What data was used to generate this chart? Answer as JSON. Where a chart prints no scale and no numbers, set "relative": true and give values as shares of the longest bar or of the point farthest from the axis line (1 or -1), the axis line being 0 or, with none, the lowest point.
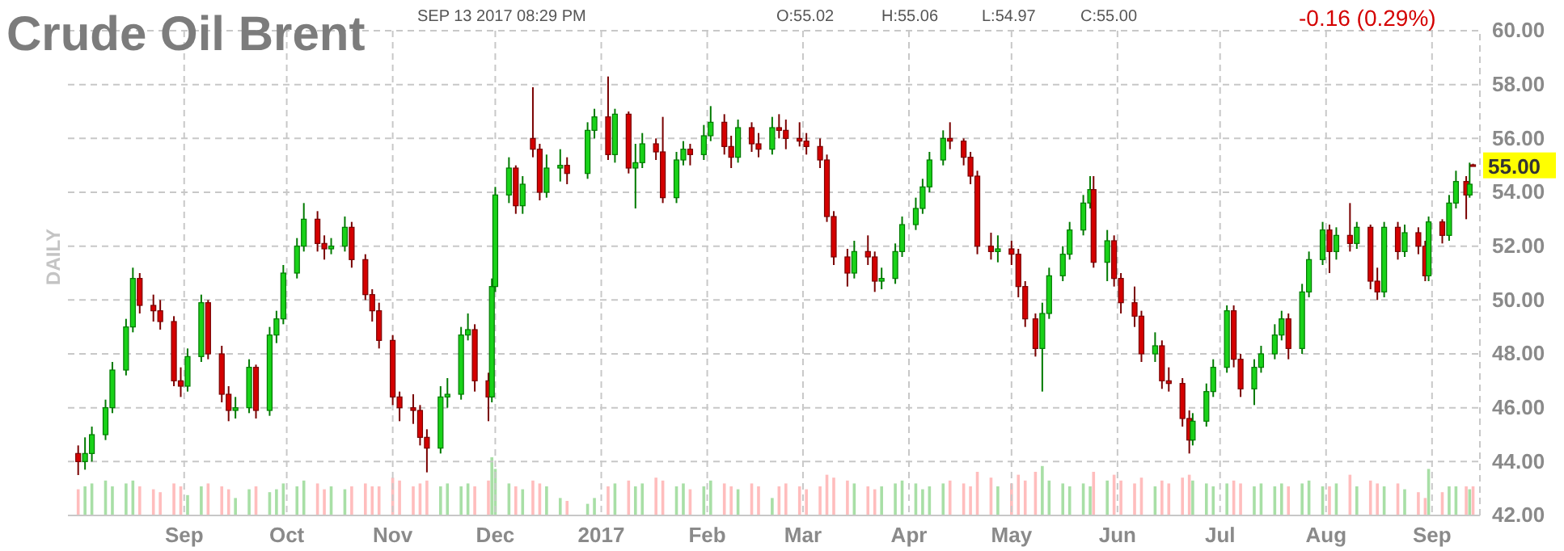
{
  "chart_data": [
    {
      "type": "candlestick",
      "title": "Crude Oil Brent",
      "subtitle": "SEP 13 2017 08:29 PM",
      "ylabel": "DAILY",
      "annotations": [
        "O:55.02",
        "H:55.06",
        "L:54.97",
        "C:55.00",
        "-0.16 (0.29%)",
        "55.00"
      ],
      "x": [
        "2016-08-01",
        "2016-08-03",
        "2016-08-05",
        "2016-08-09",
        "2016-08-11",
        "2016-08-15",
        "2016-08-17",
        "2016-08-19",
        "2016-08-23",
        "2016-08-25",
        "2016-08-29",
        "2016-08-31",
        "2016-09-02",
        "2016-09-06",
        "2016-09-08",
        "2016-09-12",
        "2016-09-14",
        "2016-09-16",
        "2016-09-20",
        "2016-09-22",
        "2016-09-26",
        "2016-09-28",
        "2016-09-30",
        "2016-10-04",
        "2016-10-06",
        "2016-10-10",
        "2016-10-12",
        "2016-10-14",
        "2016-10-18",
        "2016-10-20",
        "2016-10-24",
        "2016-10-26",
        "2016-10-28",
        "2016-11-01",
        "2016-11-03",
        "2016-11-07",
        "2016-11-09",
        "2016-11-11",
        "2016-11-15",
        "2016-11-17",
        "2016-11-21",
        "2016-11-23",
        "2016-11-25",
        "2016-11-29",
        "2016-11-30",
        "2016-12-01",
        "2016-12-05",
        "2016-12-07",
        "2016-12-09",
        "2016-12-12",
        "2016-12-14",
        "2016-12-16",
        "2016-12-20",
        "2016-12-22",
        "2016-12-28",
        "2016-12-30",
        "2017-01-03",
        "2017-01-05",
        "2017-01-09",
        "2017-01-11",
        "2017-01-13",
        "2017-01-17",
        "2017-01-19",
        "2017-01-23",
        "2017-01-25",
        "2017-01-27",
        "2017-01-31",
        "2017-02-02",
        "2017-02-06",
        "2017-02-08",
        "2017-02-10",
        "2017-02-14",
        "2017-02-16",
        "2017-02-20",
        "2017-02-22",
        "2017-02-24",
        "2017-02-28",
        "2017-03-02",
        "2017-03-06",
        "2017-03-08",
        "2017-03-10",
        "2017-03-14",
        "2017-03-16",
        "2017-03-20",
        "2017-03-22",
        "2017-03-24",
        "2017-03-28",
        "2017-03-30",
        "2017-04-03",
        "2017-04-05",
        "2017-04-07",
        "2017-04-11",
        "2017-04-13",
        "2017-04-17",
        "2017-04-19",
        "2017-04-21",
        "2017-04-25",
        "2017-04-27",
        "2017-05-01",
        "2017-05-03",
        "2017-05-05",
        "2017-05-08",
        "2017-05-10",
        "2017-05-12",
        "2017-05-16",
        "2017-05-18",
        "2017-05-22",
        "2017-05-24",
        "2017-05-25",
        "2017-05-29",
        "2017-05-31",
        "2017-06-02",
        "2017-06-06",
        "2017-06-08",
        "2017-06-12",
        "2017-06-14",
        "2017-06-16",
        "2017-06-20",
        "2017-06-22",
        "2017-06-23",
        "2017-06-27",
        "2017-06-29",
        "2017-07-03",
        "2017-07-05",
        "2017-07-07",
        "2017-07-11",
        "2017-07-13",
        "2017-07-17",
        "2017-07-19",
        "2017-07-21",
        "2017-07-25",
        "2017-07-27",
        "2017-07-31",
        "2017-08-02",
        "2017-08-04",
        "2017-08-08",
        "2017-08-10",
        "2017-08-14",
        "2017-08-16",
        "2017-08-18",
        "2017-08-22",
        "2017-08-24",
        "2017-08-28",
        "2017-08-30",
        "2017-08-31",
        "2017-09-04",
        "2017-09-06",
        "2017-09-08",
        "2017-09-11",
        "2017-09-12",
        "2017-09-13"
      ],
      "ohlc": [
        [
          44.3,
          44.6,
          43.5,
          44.0
        ],
        [
          44.0,
          44.9,
          43.7,
          44.3
        ],
        [
          44.3,
          45.3,
          44.0,
          45.0
        ],
        [
          45.0,
          46.3,
          44.8,
          46.0
        ],
        [
          46.0,
          47.7,
          45.8,
          47.4
        ],
        [
          47.4,
          49.3,
          47.2,
          49.0
        ],
        [
          49.0,
          51.2,
          48.8,
          50.8
        ],
        [
          50.8,
          51.0,
          49.5,
          49.8
        ],
        [
          49.8,
          50.2,
          49.2,
          49.6
        ],
        [
          49.6,
          50.0,
          48.9,
          49.2
        ],
        [
          49.2,
          49.4,
          46.8,
          47.0
        ],
        [
          47.0,
          47.5,
          46.4,
          46.8
        ],
        [
          46.8,
          48.2,
          46.6,
          47.9
        ],
        [
          47.9,
          50.2,
          47.7,
          49.9
        ],
        [
          49.9,
          50.0,
          47.8,
          48.0
        ],
        [
          48.0,
          48.3,
          46.2,
          46.5
        ],
        [
          46.5,
          46.8,
          45.5,
          45.9
        ],
        [
          45.9,
          46.4,
          45.6,
          46.0
        ],
        [
          46.0,
          47.8,
          45.8,
          47.5
        ],
        [
          47.5,
          47.6,
          45.6,
          45.9
        ],
        [
          45.9,
          49.0,
          45.7,
          48.7
        ],
        [
          48.7,
          49.6,
          48.4,
          49.3
        ],
        [
          49.3,
          51.3,
          49.1,
          51.0
        ],
        [
          51.0,
          52.3,
          50.8,
          52.0
        ],
        [
          52.0,
          53.6,
          51.8,
          53.0
        ],
        [
          53.0,
          53.3,
          51.8,
          52.1
        ],
        [
          52.1,
          52.4,
          51.5,
          51.9
        ],
        [
          51.9,
          52.3,
          51.7,
          52.0
        ],
        [
          52.0,
          53.1,
          51.8,
          52.7
        ],
        [
          52.7,
          52.9,
          51.2,
          51.5
        ],
        [
          51.5,
          51.7,
          50.0,
          50.2
        ],
        [
          50.2,
          50.4,
          49.2,
          49.6
        ],
        [
          49.6,
          49.9,
          48.2,
          48.5
        ],
        [
          48.5,
          48.7,
          46.1,
          46.4
        ],
        [
          46.4,
          46.6,
          45.5,
          46.0
        ],
        [
          46.0,
          46.5,
          45.4,
          45.9
        ],
        [
          45.9,
          46.1,
          44.6,
          44.9
        ],
        [
          44.9,
          45.2,
          43.6,
          44.5
        ],
        [
          44.5,
          46.8,
          44.3,
          46.4
        ],
        [
          46.4,
          47.1,
          46.0,
          46.5
        ],
        [
          46.5,
          49.0,
          46.3,
          48.7
        ],
        [
          48.7,
          49.5,
          48.5,
          48.9
        ],
        [
          48.9,
          49.1,
          46.6,
          47.0
        ],
        [
          47.0,
          47.3,
          45.5,
          46.4
        ],
        [
          46.4,
          50.8,
          46.2,
          50.5
        ],
        [
          50.5,
          54.2,
          50.3,
          53.9
        ],
        [
          53.9,
          55.3,
          53.6,
          54.9
        ],
        [
          54.9,
          55.0,
          53.2,
          53.5
        ],
        [
          53.5,
          54.6,
          53.2,
          54.3
        ],
        [
          56.0,
          57.9,
          55.3,
          55.6
        ],
        [
          55.6,
          55.8,
          53.7,
          54.0
        ],
        [
          54.0,
          55.4,
          53.8,
          54.9
        ],
        [
          54.9,
          55.6,
          54.4,
          55.0
        ],
        [
          55.0,
          55.3,
          54.3,
          54.7
        ],
        [
          54.7,
          56.6,
          54.5,
          56.3
        ],
        [
          56.3,
          57.1,
          56.0,
          56.8
        ],
        [
          56.8,
          58.3,
          55.2,
          55.4
        ],
        [
          55.4,
          57.1,
          55.1,
          56.9
        ],
        [
          56.9,
          57.0,
          54.7,
          54.9
        ],
        [
          54.9,
          55.8,
          53.4,
          55.1
        ],
        [
          55.1,
          56.2,
          54.9,
          55.8
        ],
        [
          55.8,
          56.0,
          55.2,
          55.5
        ],
        [
          55.5,
          56.8,
          53.6,
          53.8
        ],
        [
          53.8,
          55.5,
          53.6,
          55.2
        ],
        [
          55.2,
          55.9,
          55.0,
          55.6
        ],
        [
          55.6,
          55.8,
          55.0,
          55.4
        ],
        [
          55.4,
          56.5,
          55.2,
          56.1
        ],
        [
          56.1,
          57.2,
          55.9,
          56.6
        ],
        [
          56.6,
          56.9,
          55.4,
          55.7
        ],
        [
          55.7,
          56.1,
          54.9,
          55.3
        ],
        [
          55.3,
          56.7,
          55.1,
          56.4
        ],
        [
          56.4,
          56.6,
          55.5,
          55.8
        ],
        [
          55.8,
          56.2,
          55.3,
          55.6
        ],
        [
          55.6,
          56.8,
          55.4,
          56.4
        ],
        [
          56.4,
          56.9,
          56.0,
          56.3
        ],
        [
          56.3,
          56.7,
          55.6,
          56.0
        ],
        [
          56.0,
          56.6,
          55.7,
          55.9
        ],
        [
          55.9,
          56.2,
          55.4,
          55.7
        ],
        [
          55.7,
          56.0,
          54.9,
          55.2
        ],
        [
          55.2,
          55.4,
          52.9,
          53.1
        ],
        [
          53.1,
          53.3,
          51.3,
          51.6
        ],
        [
          51.6,
          51.9,
          50.5,
          51.0
        ],
        [
          51.0,
          52.2,
          50.8,
          51.8
        ],
        [
          51.8,
          52.4,
          51.3,
          51.6
        ],
        [
          51.6,
          51.8,
          50.3,
          50.7
        ],
        [
          50.7,
          51.2,
          50.4,
          50.8
        ],
        [
          50.8,
          52.1,
          50.6,
          51.8
        ],
        [
          51.8,
          53.1,
          51.6,
          52.8
        ],
        [
          52.8,
          53.8,
          52.6,
          53.4
        ],
        [
          53.4,
          54.5,
          53.2,
          54.2
        ],
        [
          54.2,
          55.5,
          54.0,
          55.2
        ],
        [
          55.2,
          56.3,
          55.0,
          56.0
        ],
        [
          56.0,
          56.6,
          55.6,
          55.9
        ],
        [
          55.9,
          56.0,
          55.0,
          55.3
        ],
        [
          55.3,
          55.5,
          54.3,
          54.6
        ],
        [
          54.6,
          54.8,
          51.7,
          52.0
        ],
        [
          52.0,
          52.5,
          51.5,
          51.8
        ],
        [
          51.8,
          52.4,
          51.4,
          51.9
        ],
        [
          51.9,
          52.2,
          51.3,
          51.7
        ],
        [
          51.7,
          51.9,
          50.1,
          50.5
        ],
        [
          50.5,
          50.7,
          49.0,
          49.3
        ],
        [
          49.3,
          49.5,
          47.9,
          48.2
        ],
        [
          48.2,
          49.9,
          46.6,
          49.5
        ],
        [
          49.5,
          51.2,
          49.3,
          50.9
        ],
        [
          50.9,
          52.0,
          50.7,
          51.7
        ],
        [
          51.7,
          52.9,
          51.5,
          52.6
        ],
        [
          52.6,
          53.9,
          52.4,
          53.6
        ],
        [
          53.6,
          54.6,
          53.4,
          54.1
        ],
        [
          54.1,
          54.6,
          51.2,
          51.4
        ],
        [
          51.4,
          52.6,
          50.7,
          52.2
        ],
        [
          52.2,
          52.4,
          50.5,
          50.8
        ],
        [
          50.8,
          51.0,
          49.5,
          49.9
        ],
        [
          49.9,
          50.5,
          49.0,
          49.4
        ],
        [
          49.4,
          49.6,
          47.7,
          48.0
        ],
        [
          48.0,
          48.8,
          47.7,
          48.3
        ],
        [
          48.3,
          48.5,
          46.7,
          47.0
        ],
        [
          47.0,
          47.5,
          46.6,
          46.9
        ],
        [
          46.9,
          47.1,
          45.3,
          45.6
        ],
        [
          45.6,
          45.9,
          44.3,
          44.8
        ],
        [
          44.8,
          45.8,
          44.6,
          45.5
        ],
        [
          45.5,
          46.9,
          45.3,
          46.6
        ],
        [
          46.6,
          47.8,
          46.4,
          47.5
        ],
        [
          47.5,
          49.8,
          47.3,
          49.6
        ],
        [
          49.6,
          49.8,
          47.5,
          47.8
        ],
        [
          47.8,
          48.0,
          46.4,
          46.7
        ],
        [
          46.7,
          47.8,
          46.1,
          47.5
        ],
        [
          47.5,
          48.3,
          47.3,
          48.0
        ],
        [
          48.0,
          49.1,
          47.8,
          48.7
        ],
        [
          48.7,
          49.6,
          48.5,
          49.3
        ],
        [
          49.3,
          49.5,
          47.8,
          48.2
        ],
        [
          48.2,
          50.6,
          48.0,
          50.3
        ],
        [
          50.3,
          51.8,
          50.1,
          51.5
        ],
        [
          51.5,
          52.9,
          51.3,
          52.6
        ],
        [
          52.6,
          52.8,
          51.0,
          51.8
        ],
        [
          51.8,
          52.7,
          51.5,
          52.4
        ],
        [
          52.4,
          53.6,
          51.8,
          52.1
        ],
        [
          52.1,
          52.9,
          51.9,
          52.7
        ],
        [
          52.7,
          52.8,
          50.4,
          50.7
        ],
        [
          50.7,
          51.2,
          50.0,
          50.3
        ],
        [
          50.3,
          52.9,
          50.1,
          52.7
        ],
        [
          52.7,
          52.9,
          51.5,
          51.8
        ],
        [
          51.8,
          52.8,
          51.6,
          52.5
        ],
        [
          52.5,
          52.7,
          51.7,
          52.0
        ],
        [
          52.0,
          52.2,
          50.7,
          50.9
        ],
        [
          50.9,
          53.1,
          50.7,
          52.9
        ],
        [
          52.9,
          53.0,
          52.1,
          52.4
        ],
        [
          52.4,
          53.9,
          52.2,
          53.6
        ],
        [
          53.6,
          54.8,
          53.4,
          54.4
        ],
        [
          54.4,
          54.6,
          53.0,
          53.9
        ],
        [
          53.9,
          55.1,
          53.8,
          54.3
        ],
        [
          55.02,
          55.06,
          54.97,
          55.0
        ]
      ],
      "xlim": [
        "2016-07-29",
        "2017-09-15"
      ],
      "xticks": [
        {
          "value": "2016-09-01",
          "label": "Sep"
        },
        {
          "value": "2016-10-01",
          "label": "Oct"
        },
        {
          "value": "2016-11-01",
          "label": "Nov"
        },
        {
          "value": "2016-12-01",
          "label": "Dec"
        },
        {
          "value": "2017-01-01",
          "label": "2017"
        },
        {
          "value": "2017-02-01",
          "label": "Feb"
        },
        {
          "value": "2017-03-01",
          "label": "Mar"
        },
        {
          "value": "2017-04-01",
          "label": "Apr"
        },
        {
          "value": "2017-05-01",
          "label": "May"
        },
        {
          "value": "2017-06-01",
          "label": "Jun"
        },
        {
          "value": "2017-07-01",
          "label": "Jul"
        },
        {
          "value": "2017-08-01",
          "label": "Aug"
        },
        {
          "value": "2017-09-01",
          "label": "Sep"
        }
      ],
      "ylim": [
        42,
        60
      ],
      "yticks": [
        {
          "value": 42,
          "label": "42.00"
        },
        {
          "value": 44,
          "label": "44.00"
        },
        {
          "value": 46,
          "label": "46.00"
        },
        {
          "value": 48,
          "label": "48.00"
        },
        {
          "value": 50,
          "label": "50.00"
        },
        {
          "value": 52,
          "label": "52.00"
        },
        {
          "value": 54,
          "label": "54.00"
        },
        {
          "value": 56,
          "label": "56.00"
        },
        {
          "value": 58,
          "label": "58.00"
        },
        {
          "value": 60,
          "label": "60.00"
        }
      ],
      "grid": true
    },
    {
      "type": "bar",
      "relative": true,
      "xlim": [
        "2016-07-29",
        "2017-09-15"
      ],
      "x": [
        "2016-08-01",
        "2016-08-03",
        "2016-08-05",
        "2016-08-09",
        "2016-08-11",
        "2016-08-15",
        "2016-08-17",
        "2016-08-19",
        "2016-08-23",
        "2016-08-25",
        "2016-08-29",
        "2016-08-31",
        "2016-09-02",
        "2016-09-06",
        "2016-09-08",
        "2016-09-12",
        "2016-09-14",
        "2016-09-16",
        "2016-09-20",
        "2016-09-22",
        "2016-09-26",
        "2016-09-28",
        "2016-09-30",
        "2016-10-04",
        "2016-10-06",
        "2016-10-10",
        "2016-10-12",
        "2016-10-14",
        "2016-10-18",
        "2016-10-20",
        "2016-10-24",
        "2016-10-26",
        "2016-10-28",
        "2016-11-01",
        "2016-11-03",
        "2016-11-07",
        "2016-11-09",
        "2016-11-11",
        "2016-11-15",
        "2016-11-17",
        "2016-11-21",
        "2016-11-23",
        "2016-11-25",
        "2016-11-29",
        "2016-11-30",
        "2016-12-01",
        "2016-12-05",
        "2016-12-07",
        "2016-12-09",
        "2016-12-12",
        "2016-12-14",
        "2016-12-16",
        "2016-12-20",
        "2016-12-22",
        "2016-12-28",
        "2016-12-30",
        "2017-01-03",
        "2017-01-05",
        "2017-01-09",
        "2017-01-11",
        "2017-01-13",
        "2017-01-17",
        "2017-01-19",
        "2017-01-23",
        "2017-01-25",
        "2017-01-27",
        "2017-01-31",
        "2017-02-02",
        "2017-02-06",
        "2017-02-08",
        "2017-02-10",
        "2017-02-14",
        "2017-02-16",
        "2017-02-20",
        "2017-02-22",
        "2017-02-24",
        "2017-02-28",
        "2017-03-02",
        "2017-03-06",
        "2017-03-08",
        "2017-03-10",
        "2017-03-14",
        "2017-03-16",
        "2017-03-20",
        "2017-03-22",
        "2017-03-24",
        "2017-03-28",
        "2017-03-30",
        "2017-04-03",
        "2017-04-05",
        "2017-04-07",
        "2017-04-11",
        "2017-04-13",
        "2017-04-17",
        "2017-04-19",
        "2017-04-21",
        "2017-04-25",
        "2017-04-27",
        "2017-05-01",
        "2017-05-03",
        "2017-05-05",
        "2017-05-08",
        "2017-05-10",
        "2017-05-12",
        "2017-05-16",
        "2017-05-18",
        "2017-05-22",
        "2017-05-24",
        "2017-05-25",
        "2017-05-29",
        "2017-05-31",
        "2017-06-02",
        "2017-06-06",
        "2017-06-08",
        "2017-06-12",
        "2017-06-14",
        "2017-06-16",
        "2017-06-20",
        "2017-06-22",
        "2017-06-23",
        "2017-06-27",
        "2017-06-29",
        "2017-07-03",
        "2017-07-05",
        "2017-07-07",
        "2017-07-11",
        "2017-07-13",
        "2017-07-17",
        "2017-07-19",
        "2017-07-21",
        "2017-07-25",
        "2017-07-27",
        "2017-07-31",
        "2017-08-02",
        "2017-08-04",
        "2017-08-08",
        "2017-08-10",
        "2017-08-14",
        "2017-08-16",
        "2017-08-18",
        "2017-08-22",
        "2017-08-24",
        "2017-08-28",
        "2017-08-30",
        "2017-08-31",
        "2017-09-04",
        "2017-09-06",
        "2017-09-08",
        "2017-09-11",
        "2017-09-12",
        "2017-09-13"
      ],
      "values": [
        0.45,
        0.5,
        0.55,
        0.6,
        0.5,
        0.55,
        0.6,
        0.5,
        0.45,
        0.4,
        0.55,
        0.5,
        0.35,
        0.5,
        0.55,
        0.5,
        0.45,
        0.3,
        0.45,
        0.5,
        0.4,
        0.45,
        0.55,
        0.5,
        0.6,
        0.55,
        0.45,
        0.5,
        0.45,
        0.5,
        0.55,
        0.5,
        0.5,
        0.65,
        0.6,
        0.5,
        0.55,
        0.6,
        0.5,
        0.55,
        0.5,
        0.55,
        0.5,
        0.6,
        1.0,
        0.8,
        0.55,
        0.5,
        0.45,
        0.6,
        0.55,
        0.5,
        0.3,
        0.25,
        0.2,
        0.3,
        0.5,
        0.55,
        0.6,
        0.5,
        0.55,
        0.65,
        0.6,
        0.5,
        0.55,
        0.45,
        0.5,
        0.6,
        0.55,
        0.5,
        0.45,
        0.55,
        0.5,
        0.3,
        0.5,
        0.55,
        0.5,
        0.45,
        0.5,
        0.7,
        0.65,
        0.6,
        0.55,
        0.5,
        0.45,
        0.5,
        0.55,
        0.6,
        0.55,
        0.45,
        0.5,
        0.55,
        0.6,
        0.55,
        0.5,
        0.75,
        0.65,
        0.5,
        0.55,
        0.7,
        0.6,
        0.75,
        0.85,
        0.6,
        0.55,
        0.5,
        0.55,
        0.5,
        0.75,
        0.6,
        0.7,
        0.6,
        0.55,
        0.65,
        0.5,
        0.6,
        0.55,
        0.65,
        0.7,
        0.6,
        0.55,
        0.5,
        0.55,
        0.6,
        0.55,
        0.5,
        0.55,
        0.5,
        0.55,
        0.5,
        0.55,
        0.6,
        0.5,
        0.5,
        0.55,
        0.7,
        0.5,
        0.6,
        0.55,
        0.5,
        0.55,
        0.45,
        0.4,
        0.3,
        0.8,
        0.4,
        0.5,
        0.5,
        0.5,
        0.45,
        0.5
      ],
      "colors": [
        "#ffbdbd",
        "#a8dfa6",
        "#a8dfa6",
        "#a8dfa6",
        "#a8dfa6",
        "#a8dfa6",
        "#a8dfa6",
        "#ffbdbd",
        "#ffbdbd",
        "#ffbdbd",
        "#ffbdbd",
        "#ffbdbd",
        "#a8dfa6",
        "#a8dfa6",
        "#ffbdbd",
        "#ffbdbd",
        "#ffbdbd",
        "#a8dfa6",
        "#a8dfa6",
        "#ffbdbd",
        "#a8dfa6",
        "#a8dfa6",
        "#a8dfa6",
        "#a8dfa6",
        "#a8dfa6",
        "#ffbdbd",
        "#ffbdbd",
        "#a8dfa6",
        "#a8dfa6",
        "#ffbdbd",
        "#ffbdbd",
        "#ffbdbd",
        "#ffbdbd",
        "#ffbdbd",
        "#ffbdbd",
        "#ffbdbd",
        "#ffbdbd",
        "#ffbdbd",
        "#a8dfa6",
        "#a8dfa6",
        "#a8dfa6",
        "#a8dfa6",
        "#ffbdbd",
        "#ffbdbd",
        "#a8dfa6",
        "#a8dfa6",
        "#a8dfa6",
        "#ffbdbd",
        "#a8dfa6",
        "#ffbdbd",
        "#ffbdbd",
        "#a8dfa6",
        "#a8dfa6",
        "#ffbdbd",
        "#a8dfa6",
        "#a8dfa6",
        "#ffbdbd",
        "#a8dfa6",
        "#ffbdbd",
        "#a8dfa6",
        "#a8dfa6",
        "#ffbdbd",
        "#ffbdbd",
        "#a8dfa6",
        "#a8dfa6",
        "#ffbdbd",
        "#a8dfa6",
        "#a8dfa6",
        "#ffbdbd",
        "#ffbdbd",
        "#a8dfa6",
        "#ffbdbd",
        "#ffbdbd",
        "#a8dfa6",
        "#ffbdbd",
        "#ffbdbd",
        "#ffbdbd",
        "#ffbdbd",
        "#ffbdbd",
        "#ffbdbd",
        "#ffbdbd",
        "#ffbdbd",
        "#a8dfa6",
        "#ffbdbd",
        "#ffbdbd",
        "#a8dfa6",
        "#a8dfa6",
        "#a8dfa6",
        "#a8dfa6",
        "#a8dfa6",
        "#a8dfa6",
        "#a8dfa6",
        "#ffbdbd",
        "#ffbdbd",
        "#ffbdbd",
        "#ffbdbd",
        "#ffbdbd",
        "#a8dfa6",
        "#ffbdbd",
        "#ffbdbd",
        "#ffbdbd",
        "#ffbdbd",
        "#a8dfa6",
        "#a8dfa6",
        "#a8dfa6",
        "#a8dfa6",
        "#a8dfa6",
        "#a8dfa6",
        "#ffbdbd",
        "#a8dfa6",
        "#ffbdbd",
        "#ffbdbd",
        "#ffbdbd",
        "#ffbdbd",
        "#a8dfa6",
        "#ffbdbd",
        "#ffbdbd",
        "#ffbdbd",
        "#ffbdbd",
        "#a8dfa6",
        "#a8dfa6",
        "#a8dfa6",
        "#a8dfa6",
        "#ffbdbd",
        "#ffbdbd",
        "#a8dfa6",
        "#a8dfa6",
        "#a8dfa6",
        "#a8dfa6",
        "#ffbdbd",
        "#a8dfa6",
        "#a8dfa6",
        "#a8dfa6",
        "#ffbdbd",
        "#a8dfa6",
        "#ffbdbd",
        "#a8dfa6",
        "#ffbdbd",
        "#ffbdbd",
        "#a8dfa6",
        "#ffbdbd",
        "#a8dfa6",
        "#ffbdbd",
        "#ffbdbd",
        "#a8dfa6",
        "#ffbdbd",
        "#a8dfa6",
        "#a8dfa6",
        "#ffbdbd",
        "#a8dfa6",
        "#ffbdbd"
      ]
    }
  ]
}
